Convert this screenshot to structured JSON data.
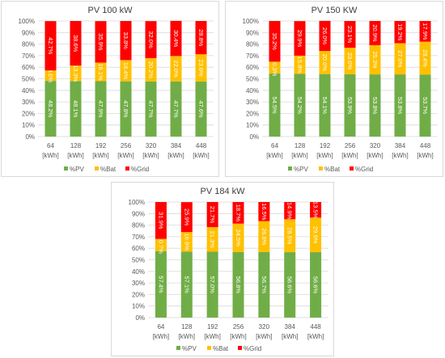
{
  "chart_data": [
    {
      "type": "bar",
      "stacked": true,
      "title": "PV 100 kW",
      "categories": [
        [
          "64",
          "[kWh]"
        ],
        [
          "128",
          "[kWh]"
        ],
        [
          "192",
          "[kWh]"
        ],
        [
          "256",
          "[kWh]"
        ],
        [
          "320",
          "[kWh]"
        ],
        [
          "384",
          "[kWh]"
        ],
        [
          "448",
          "[kWh]"
        ]
      ],
      "yticks": [
        "0%",
        "10%",
        "20%",
        "30%",
        "40%",
        "50%",
        "60%",
        "70%",
        "80%",
        "90%",
        "100%"
      ],
      "ylim": [
        0,
        100
      ],
      "grid": true,
      "legend_position": "bottom",
      "series": [
        {
          "name": "%PV",
          "color": "#70ad47",
          "values": [
            48.2,
            48.1,
            47.9,
            47.8,
            47.7,
            47.7,
            47.6
          ],
          "labels": [
            "48.2%",
            "48.1%",
            "47.9%",
            "47.8%",
            "47.7%",
            "47.7%",
            "47.6%"
          ]
        },
        {
          "name": "%Bat",
          "color": "#ffc000",
          "values": [
            9.0,
            13.3,
            16.1,
            18.4,
            20.2,
            22.0,
            23.6
          ],
          "labels": [
            "9.0%",
            "13.3%",
            "16.1%",
            "18.4%",
            "20.2%",
            "22.0%",
            "23.6%"
          ]
        },
        {
          "name": "%Grid",
          "color": "#ff0000",
          "values": [
            42.7,
            38.6,
            35.9,
            33.8,
            32.0,
            30.4,
            28.8
          ],
          "labels": [
            "42.7%",
            "38.6%",
            "35.9%",
            "33.8%",
            "32.0%",
            "30.4%",
            "28.8%"
          ]
        }
      ]
    },
    {
      "type": "bar",
      "stacked": true,
      "title": "PV 150 KW",
      "categories": [
        [
          "64",
          "[kWh]"
        ],
        [
          "128",
          "[kWh]"
        ],
        [
          "192",
          "[kWh]"
        ],
        [
          "256",
          "[kWh]"
        ],
        [
          "320",
          "[kWh]"
        ],
        [
          "384",
          "[kWh]"
        ],
        [
          "448",
          "[kWh]"
        ]
      ],
      "yticks": [
        "0%",
        "10%",
        "20%",
        "30%",
        "40%",
        "50%",
        "60%",
        "70%",
        "80%",
        "90%",
        "100%"
      ],
      "ylim": [
        0,
        100
      ],
      "grid": true,
      "legend_position": "bottom",
      "series": [
        {
          "name": "%PV",
          "color": "#70ad47",
          "values": [
            54.5,
            54.2,
            54.1,
            53.9,
            53.8,
            53.8,
            53.7
          ],
          "labels": [
            "54.5%",
            "54.2%",
            "54.1%",
            "53.9%",
            "53.8%",
            "53.8%",
            "53.7%"
          ]
        },
        {
          "name": "%Bat",
          "color": "#ffc000",
          "values": [
            10.3,
            15.8,
            20.0,
            23.0,
            25.3,
            27.0,
            28.4
          ],
          "labels": [
            "10.3%",
            "15.8%",
            "20.0%",
            "23.0%",
            "25.3%",
            "27.0%",
            "28.4%"
          ]
        },
        {
          "name": "%Grid",
          "color": "#ff0000",
          "values": [
            35.2,
            29.9,
            26.0,
            23.1,
            20.9,
            19.2,
            17.9
          ],
          "labels": [
            "35.2%",
            "29.9%",
            "26.0%",
            "23.1%",
            "20.9%",
            "19.2%",
            "17.9%"
          ]
        }
      ]
    },
    {
      "type": "bar",
      "stacked": true,
      "title": "PV 184 kW",
      "categories": [
        [
          "64",
          "[kWh]"
        ],
        [
          "128",
          "[kWh]"
        ],
        [
          "192",
          "[kWh]"
        ],
        [
          "256",
          "[kWh]"
        ],
        [
          "320",
          "[kWh]"
        ],
        [
          "384",
          "[kWh]"
        ],
        [
          "448",
          "[kWh]"
        ]
      ],
      "yticks": [
        "0%",
        "10%",
        "20%",
        "30%",
        "40%",
        "50%",
        "60%",
        "70%",
        "80%",
        "90%",
        "100%"
      ],
      "ylim": [
        0,
        100
      ],
      "grid": true,
      "legend_position": "bottom",
      "series": [
        {
          "name": "%PV",
          "color": "#70ad47",
          "values": [
            57.4,
            57.1,
            57.0,
            56.8,
            56.7,
            56.6,
            56.6
          ],
          "labels": [
            "57.4%",
            "57.1%",
            "57.0%",
            "56.8%",
            "56.7%",
            "56.6%",
            "56.6%"
          ]
        },
        {
          "name": "%Bat",
          "color": "#ffc000",
          "values": [
            10.7,
            16.9,
            21.3,
            24.5,
            26.8,
            28.5,
            29.9
          ],
          "labels": [
            "10.7%",
            "16.9%",
            "21.3%",
            "24.5%",
            "26.8%",
            "28.5%",
            "29.9%"
          ]
        },
        {
          "name": "%Grid",
          "color": "#ff0000",
          "values": [
            31.9,
            25.9,
            21.7,
            18.7,
            16.5,
            14.9,
            13.5
          ],
          "labels": [
            "31.9%",
            "25.9%",
            "21.7%",
            "18.7%",
            "16.5%",
            "14.9%",
            "13.5%"
          ]
        }
      ]
    }
  ]
}
